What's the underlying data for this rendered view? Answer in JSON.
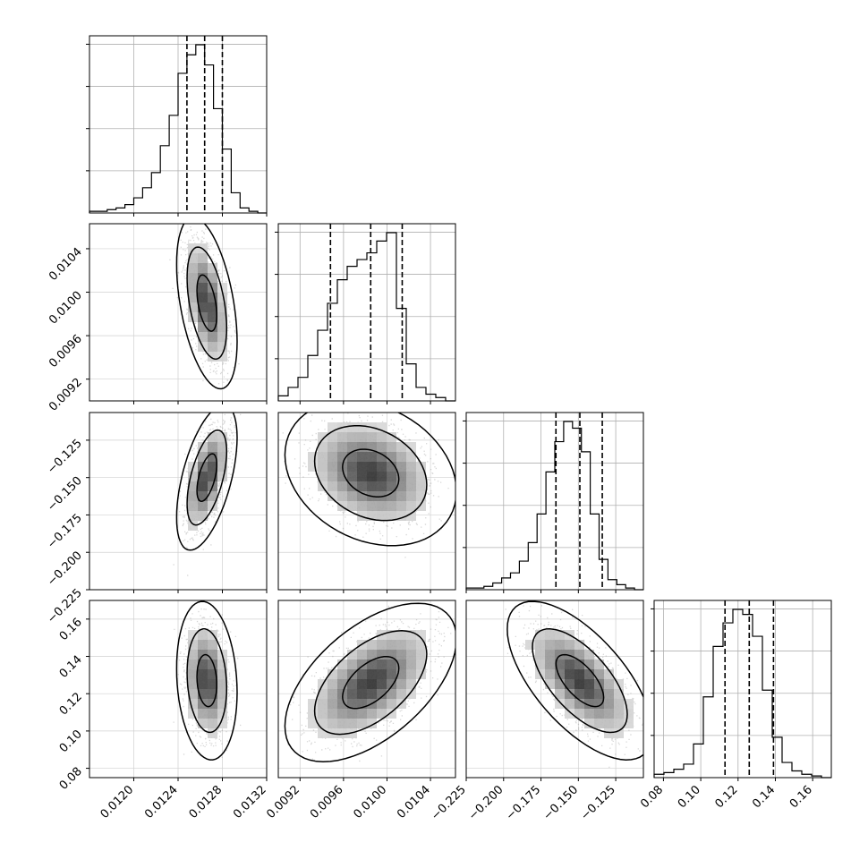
{
  "chart_data": {
    "type": "corner",
    "parameters": [
      {
        "range": [
          0.0116,
          0.0132
        ],
        "ticks": [
          "0.0120",
          "0.0124",
          "0.0128",
          "0.0132"
        ],
        "tick_values": [
          0.012,
          0.0124,
          0.0128,
          0.0132
        ],
        "quantiles": [
          0.01248,
          0.01264,
          0.0128
        ],
        "histogram": [
          0.01,
          0.01,
          0.02,
          0.03,
          0.05,
          0.09,
          0.15,
          0.24,
          0.4,
          0.58,
          0.83,
          0.94,
          1.0,
          0.88,
          0.62,
          0.38,
          0.12,
          0.03,
          0.01,
          0.0
        ]
      },
      {
        "range": [
          0.009,
          0.01063
        ],
        "ticks": [
          "0.0092",
          "0.0096",
          "0.0100",
          "0.0104"
        ],
        "tick_values": [
          0.0092,
          0.0096,
          0.01,
          0.0104
        ],
        "quantiles": [
          0.00948,
          0.00985,
          0.01014
        ],
        "histogram": [
          0.03,
          0.08,
          0.14,
          0.27,
          0.42,
          0.58,
          0.72,
          0.8,
          0.84,
          0.88,
          0.95,
          1.0,
          0.55,
          0.22,
          0.08,
          0.04,
          0.02,
          0.0
        ]
      },
      {
        "range": [
          -0.225,
          -0.1065
        ],
        "ticks": [
          "−0.225",
          "−0.200",
          "−0.175",
          "−0.150",
          "−0.125"
        ],
        "tick_values": [
          -0.225,
          -0.2,
          -0.175,
          -0.15,
          -0.125
        ],
        "quantiles": [
          -0.165,
          -0.149,
          -0.134
        ],
        "histogram": [
          0.01,
          0.01,
          0.02,
          0.04,
          0.07,
          0.1,
          0.17,
          0.28,
          0.45,
          0.7,
          0.88,
          1.0,
          0.96,
          0.82,
          0.45,
          0.18,
          0.06,
          0.03,
          0.01,
          0.0
        ]
      },
      {
        "range": [
          0.075,
          0.17
        ],
        "ticks": [
          "0.08",
          "0.10",
          "0.12",
          "0.14",
          "0.16"
        ],
        "tick_values": [
          0.08,
          0.1,
          0.12,
          0.14,
          0.16
        ],
        "quantiles": [
          0.113,
          0.126,
          0.139
        ],
        "histogram": [
          0.02,
          0.03,
          0.05,
          0.08,
          0.2,
          0.48,
          0.78,
          0.92,
          1.0,
          0.97,
          0.84,
          0.52,
          0.24,
          0.09,
          0.04,
          0.02,
          0.01,
          0.0
        ]
      }
    ],
    "pairs": [
      {
        "row": 1,
        "col": 0,
        "mean": [
          0.01266,
          0.0099
        ],
        "sd": [
          9e-05,
          0.00026
        ],
        "rho": -0.45
      },
      {
        "row": 2,
        "col": 0,
        "mean": [
          0.01266,
          -0.15
        ],
        "sd": [
          9e-05,
          0.016
        ],
        "rho": 0.55
      },
      {
        "row": 2,
        "col": 1,
        "mean": [
          0.00985,
          -0.147
        ],
        "sd": [
          0.00026,
          0.016
        ],
        "rho": -0.25
      },
      {
        "row": 3,
        "col": 0,
        "mean": [
          0.01266,
          0.127
        ],
        "sd": [
          9e-05,
          0.014
        ],
        "rho": -0.15
      },
      {
        "row": 3,
        "col": 1,
        "mean": [
          0.00985,
          0.126
        ],
        "sd": [
          0.00026,
          0.014
        ],
        "rho": 0.55
      },
      {
        "row": 3,
        "col": 2,
        "mean": [
          -0.149,
          0.127
        ],
        "sd": [
          0.016,
          0.014
        ],
        "rho": -0.65
      }
    ],
    "contour_levels": [
      0.39,
      0.86,
      0.99
    ],
    "grid": true,
    "colors": {
      "line": "#000000",
      "scatter": "#8c8c8c",
      "grid": "#b0b0b0"
    }
  }
}
